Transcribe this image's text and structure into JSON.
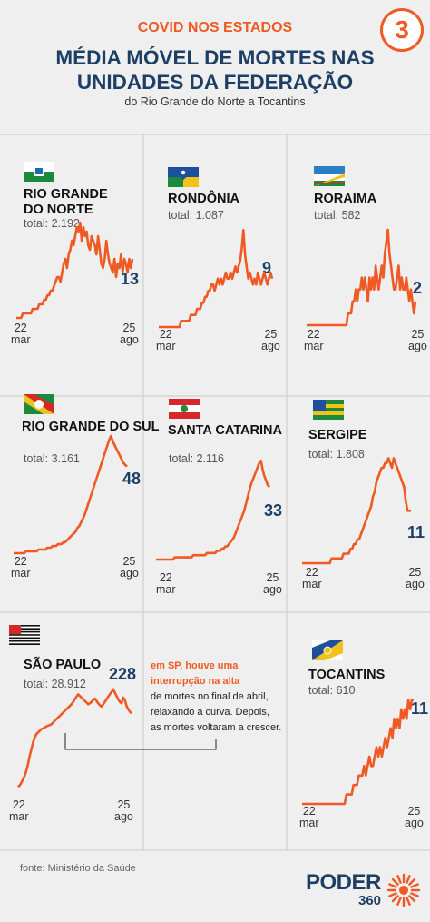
{
  "header": {
    "kicker": "COVID NOS ESTADOS",
    "title_line1": "MÉDIA MÓVEL DE MORTES NAS",
    "title_line2": "UNIDADES DA FEDERAÇÃO",
    "subtitle": "do Rio Grande do Norte a Tocantins",
    "number": "3"
  },
  "annotation": {
    "highlight_line1": "em SP, houve uma",
    "highlight_line2": "interrupção na alta",
    "line3": "de mortes no final de abril,",
    "line4": "relaxando a curva. Depois,",
    "line5": "as mortes voltaram a crescer."
  },
  "footer": {
    "source": "fonte: Ministério da Saúde",
    "logo_word": "PODER",
    "logo_num": "360"
  },
  "colors": {
    "line": "#ef5a24",
    "navy": "#1d3f66",
    "divider": "#c8c8c8"
  },
  "chart_data": [
    {
      "type": "line",
      "state": "RIO GRANDE DO NORTE",
      "title_lines": [
        "RIO GRANDE",
        "DO NORTE"
      ],
      "total": "total: 2.192",
      "last_label": "13",
      "xlabel_start": [
        "22",
        "mar"
      ],
      "xlabel_end": [
        "25",
        "ago"
      ],
      "ylim": [
        0,
        22
      ],
      "flag": "flag-rio-grande-do-norte",
      "values": [
        0,
        0,
        0,
        0,
        1,
        1,
        1,
        1,
        1,
        1,
        2,
        2,
        2,
        2,
        3,
        3,
        3,
        4,
        4,
        5,
        5,
        6,
        6,
        7,
        8,
        9,
        9,
        8,
        10,
        12,
        13,
        11,
        14,
        15,
        17,
        16,
        18,
        20,
        19,
        21,
        17,
        20,
        18,
        19,
        16,
        15,
        18,
        17,
        16,
        14,
        18,
        15,
        12,
        11,
        13,
        17,
        14,
        12,
        11,
        10,
        13,
        9,
        12,
        11,
        14,
        10,
        13,
        12,
        10,
        13,
        11,
        13
      ]
    },
    {
      "type": "line",
      "state": "RONDÔNIA",
      "title_lines": [
        "RONDÔNIA"
      ],
      "total": "total: 1.087",
      "last_label": "9",
      "xlabel_start": [
        "22",
        "mar"
      ],
      "xlabel_end": [
        "25",
        "ago"
      ],
      "ylim": [
        0,
        18
      ],
      "flag": "flag-rondonia",
      "values": [
        0,
        0,
        0,
        0,
        0,
        0,
        0,
        0,
        0,
        0,
        0,
        0,
        0,
        0,
        1,
        1,
        1,
        1,
        1,
        1,
        2,
        2,
        2,
        2,
        3,
        3,
        3,
        4,
        4,
        5,
        5,
        6,
        6,
        7,
        7,
        6,
        7,
        8,
        7,
        8,
        7,
        8,
        9,
        8,
        8,
        9,
        8,
        9,
        10,
        9,
        10,
        11,
        13,
        16,
        12,
        10,
        8,
        9,
        8,
        7,
        8,
        7,
        9,
        8,
        7,
        8,
        9,
        8,
        7,
        8,
        9,
        8
      ]
    },
    {
      "type": "line",
      "state": "RORAIMA",
      "title_lines": [
        "RORAIMA"
      ],
      "total": "total: 582",
      "last_label": "2",
      "xlabel_start": [
        "22",
        "mar"
      ],
      "xlabel_end": [
        "25",
        "ago"
      ],
      "ylim": [
        0,
        9
      ],
      "flag": "flag-roraima",
      "values": [
        0,
        0,
        0,
        0,
        0,
        0,
        0,
        0,
        0,
        0,
        0,
        0,
        0,
        0,
        0,
        0,
        0,
        0,
        0,
        0,
        0,
        0,
        0,
        0,
        0,
        0,
        0,
        1,
        1,
        1,
        2,
        2,
        3,
        2,
        3,
        3,
        4,
        3,
        4,
        3,
        2,
        4,
        3,
        4,
        3,
        5,
        4,
        3,
        4,
        5,
        4,
        6,
        7,
        8,
        6,
        5,
        4,
        3,
        3,
        4,
        5,
        3,
        4,
        3,
        3,
        4,
        3,
        2,
        3,
        2,
        1,
        2
      ]
    },
    {
      "type": "line",
      "state": "RIO GRANDE DO SUL",
      "title_lines": [
        "RIO GRANDE DO SUL"
      ],
      "total": "total: 3.161",
      "last_label": "48",
      "xlabel_start": [
        "22",
        "mar"
      ],
      "xlabel_end": [
        "25",
        "ago"
      ],
      "ylim": [
        0,
        68
      ],
      "flag": "flag-rio-grande-do-sul",
      "values": [
        0,
        0,
        0,
        0,
        0,
        0,
        0,
        1,
        1,
        1,
        1,
        1,
        1,
        1,
        2,
        2,
        2,
        2,
        2,
        3,
        3,
        3,
        4,
        4,
        4,
        5,
        5,
        5,
        6,
        6,
        7,
        8,
        9,
        10,
        11,
        12,
        14,
        15,
        17,
        19,
        21,
        24,
        27,
        30,
        33,
        36,
        39,
        42,
        45,
        48,
        51,
        54,
        57,
        60,
        63,
        65,
        62,
        60,
        58,
        56,
        54,
        52,
        50,
        49,
        48
      ]
    },
    {
      "type": "line",
      "state": "SANTA CATARINA",
      "title_lines": [
        "SANTA CATARINA"
      ],
      "total": "total: 2.116",
      "last_label": "33",
      "xlabel_start": [
        "22",
        "mar"
      ],
      "xlabel_end": [
        "25",
        "ago"
      ],
      "ylim": [
        0,
        48
      ],
      "flag": "flag-santa-catarina",
      "values": [
        0,
        0,
        0,
        0,
        0,
        0,
        0,
        0,
        0,
        0,
        0,
        1,
        1,
        1,
        1,
        1,
        1,
        1,
        1,
        1,
        1,
        1,
        2,
        2,
        2,
        2,
        2,
        2,
        2,
        2,
        3,
        3,
        3,
        3,
        3,
        3,
        4,
        4,
        4,
        5,
        5,
        6,
        6,
        7,
        8,
        9,
        10,
        12,
        14,
        16,
        18,
        20,
        22,
        25,
        28,
        31,
        34,
        36,
        38,
        40,
        42,
        44,
        45,
        41,
        38,
        36,
        34,
        33
      ]
    },
    {
      "type": "line",
      "state": "SERGIPE",
      "title_lines": [
        "SERGIPE"
      ],
      "total": "total: 1.808",
      "last_label": "11",
      "xlabel_start": [
        "22",
        "mar"
      ],
      "xlabel_end": [
        "25",
        "ago"
      ],
      "ylim": [
        0,
        24
      ],
      "flag": "flag-sergipe",
      "values": [
        0,
        0,
        0,
        0,
        0,
        0,
        0,
        0,
        0,
        0,
        0,
        0,
        0,
        0,
        0,
        0,
        0,
        1,
        1,
        1,
        1,
        1,
        1,
        1,
        2,
        2,
        2,
        2,
        3,
        3,
        4,
        4,
        5,
        5,
        6,
        7,
        8,
        9,
        10,
        11,
        12,
        14,
        15,
        17,
        18,
        19,
        20,
        20,
        21,
        21,
        22,
        21,
        20,
        22,
        21,
        20,
        19,
        18,
        17,
        16,
        13,
        11,
        11,
        11
      ]
    },
    {
      "type": "line",
      "state": "SÃO PAULO",
      "title_lines": [
        "SÃO PAULO"
      ],
      "total": "total: 28.912",
      "last_label": "228",
      "xlabel_start": [
        "22",
        "mar"
      ],
      "xlabel_end": [
        "25",
        "ago"
      ],
      "ylim": [
        0,
        330
      ],
      "flag": "flag-sao-paulo",
      "values": [
        5,
        10,
        18,
        28,
        40,
        55,
        75,
        100,
        120,
        140,
        155,
        165,
        170,
        175,
        180,
        182,
        185,
        188,
        190,
        192,
        195,
        200,
        205,
        210,
        215,
        220,
        225,
        230,
        235,
        240,
        245,
        250,
        255,
        262,
        270,
        278,
        285,
        280,
        275,
        270,
        265,
        260,
        255,
        258,
        262,
        268,
        272,
        265,
        258,
        252,
        248,
        255,
        262,
        270,
        278,
        285,
        292,
        300,
        290,
        280,
        270,
        262,
        258,
        275,
        268,
        250,
        240,
        232,
        228
      ]
    },
    {
      "type": "line",
      "state": "TOCANTINS",
      "title_lines": [
        "TOCANTINS"
      ],
      "total": "total: 610",
      "last_label": "11",
      "xlabel_start": [
        "22",
        "mar"
      ],
      "xlabel_end": [
        "25",
        "ago"
      ],
      "ylim": [
        0,
        12
      ],
      "flag": "flag-tocantins",
      "values": [
        0,
        0,
        0,
        0,
        0,
        0,
        0,
        0,
        0,
        0,
        0,
        0,
        0,
        0,
        0,
        0,
        0,
        0,
        0,
        0,
        0,
        0,
        0,
        0,
        0,
        1,
        1,
        1,
        1,
        2,
        2,
        2,
        3,
        3,
        3,
        4,
        3,
        4,
        5,
        4,
        4,
        5,
        6,
        5,
        6,
        5,
        6,
        7,
        6,
        7,
        8,
        7,
        9,
        8,
        9,
        8,
        10,
        9,
        10,
        9,
        11,
        10,
        11,
        11
      ]
    }
  ]
}
